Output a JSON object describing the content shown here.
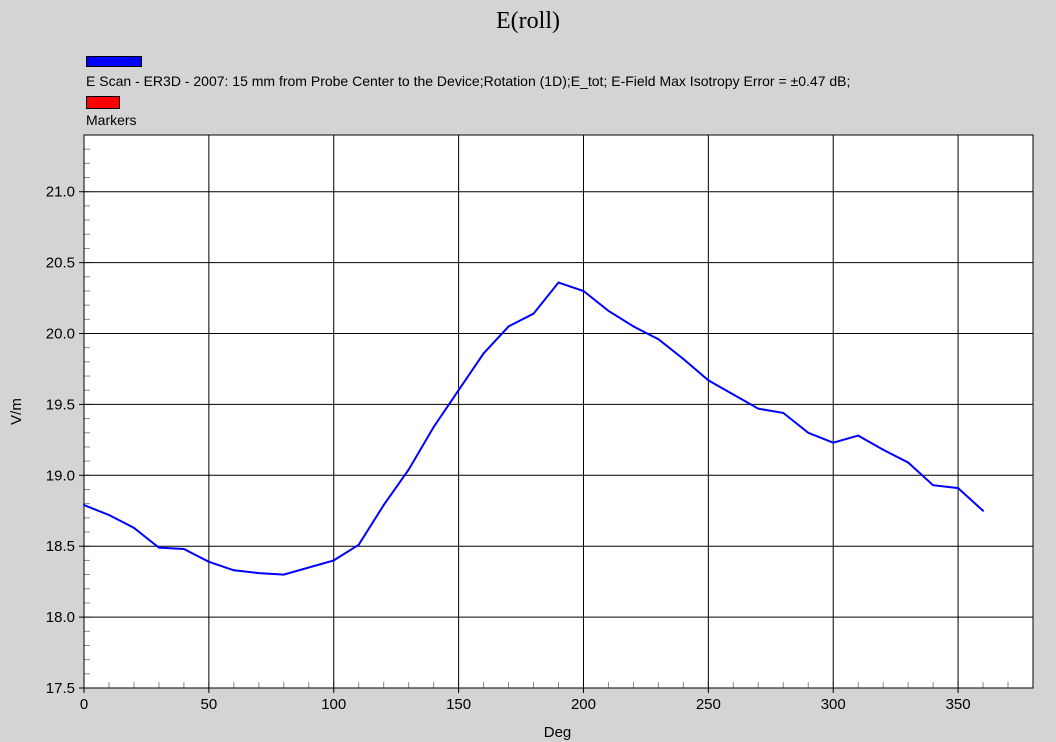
{
  "chart_data": {
    "type": "line",
    "title": "E(roll)",
    "xlabel": "Deg",
    "ylabel": "V/m",
    "xlim": [
      0,
      380
    ],
    "ylim": [
      17.5,
      21.4
    ],
    "xticks": [
      0,
      50,
      100,
      150,
      200,
      250,
      300,
      350
    ],
    "yticks": [
      17.5,
      18.0,
      18.5,
      19.0,
      19.5,
      20.0,
      20.5,
      21.0
    ],
    "ytick_labels": [
      "17.5",
      "18.0",
      "18.5",
      "19.0",
      "19.5",
      "20.0",
      "20.5",
      "21.0"
    ],
    "grid": true,
    "legend_position": "top-left",
    "series": [
      {
        "name": "E Scan - ER3D - 2007: 15 mm from Probe Center to the Device;Rotation (1D);E_tot; E-Field Max Isotropy Error = ±0.47 dB;",
        "color": "#0000ff",
        "x": [
          0,
          10,
          20,
          30,
          40,
          50,
          60,
          70,
          80,
          90,
          100,
          110,
          120,
          130,
          140,
          150,
          160,
          170,
          180,
          190,
          200,
          210,
          220,
          230,
          240,
          250,
          260,
          270,
          280,
          290,
          300,
          310,
          320,
          330,
          340,
          350,
          360
        ],
        "values": [
          18.79,
          18.72,
          18.63,
          18.49,
          18.48,
          18.39,
          18.33,
          18.31,
          18.3,
          18.35,
          18.4,
          18.51,
          18.79,
          19.04,
          19.34,
          19.6,
          19.86,
          20.05,
          20.14,
          20.36,
          20.3,
          20.16,
          20.05,
          19.96,
          19.82,
          19.67,
          19.57,
          19.47,
          19.44,
          19.3,
          19.23,
          19.28,
          19.18,
          19.09,
          18.93,
          18.91,
          18.75
        ]
      },
      {
        "name": "Markers",
        "color": "#ff0000",
        "x": [],
        "values": []
      }
    ]
  }
}
